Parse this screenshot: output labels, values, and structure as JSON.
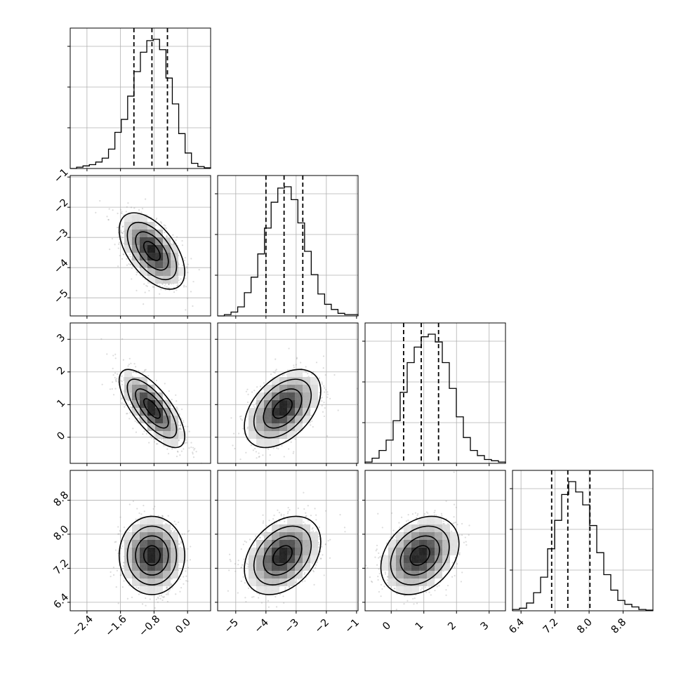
{
  "chart_data": {
    "type": "corner",
    "parameters": [
      "",
      "",
      "",
      ""
    ],
    "grid": true,
    "histograms": [
      {
        "param": 0,
        "xlim": [
          -2.8,
          0.55
        ],
        "x_ticks": [
          "-2.4",
          "-1.6",
          "-0.8",
          "0.0"
        ],
        "quantile_lines": [
          -1.28,
          -0.85,
          -0.48
        ],
        "bins_start": -2.8,
        "bins_end": 0.55,
        "counts": [
          0,
          0.01,
          0.02,
          0.03,
          0.05,
          0.08,
          0.15,
          0.28,
          0.38,
          0.56,
          0.75,
          0.9,
          0.99,
          1.0,
          0.92,
          0.7,
          0.5,
          0.27,
          0.12,
          0.04,
          0.015,
          0.005
        ]
      },
      {
        "param": 1,
        "xlim": [
          -5.6,
          -0.95
        ],
        "x_ticks": [
          "-5",
          "-4",
          "-3",
          "-2",
          "-1"
        ],
        "quantile_lines": [
          -4.0,
          -3.4,
          -2.78
        ],
        "bins_start": -5.6,
        "bins_end": -0.95,
        "counts": [
          0,
          0.01,
          0.03,
          0.07,
          0.18,
          0.3,
          0.48,
          0.68,
          0.88,
          0.99,
          1.0,
          0.9,
          0.72,
          0.5,
          0.32,
          0.17,
          0.09,
          0.05,
          0.02,
          0.01,
          0.01
        ]
      },
      {
        "param": 2,
        "xlim": [
          -0.8,
          3.5
        ],
        "x_ticks": [
          "0",
          "1",
          "2",
          "3"
        ],
        "quantile_lines": [
          0.38,
          0.92,
          1.45
        ],
        "bins_start": -0.8,
        "bins_end": 3.5,
        "counts": [
          0.01,
          0.04,
          0.1,
          0.18,
          0.33,
          0.55,
          0.78,
          0.9,
          0.98,
          1.0,
          0.94,
          0.78,
          0.58,
          0.36,
          0.2,
          0.1,
          0.06,
          0.03,
          0.02,
          0.01
        ]
      },
      {
        "param": 3,
        "xlim": [
          6.2,
          9.5
        ],
        "x_ticks": [
          "6.4",
          "7.2",
          "8.0",
          "8.8"
        ],
        "quantile_lines": [
          7.12,
          7.5,
          8.02
        ],
        "bins_start": 6.2,
        "bins_end": 9.5,
        "counts": [
          0.01,
          0.02,
          0.06,
          0.14,
          0.26,
          0.48,
          0.7,
          0.9,
          1.0,
          0.92,
          0.82,
          0.66,
          0.45,
          0.28,
          0.16,
          0.08,
          0.05,
          0.03,
          0.01,
          0.005
        ]
      }
    ],
    "panels_2d": [
      {
        "row": 1,
        "col": 0,
        "x_param": 0,
        "y_param": 1,
        "mean": [
          -0.85,
          -3.45
        ],
        "sd": [
          0.34,
          0.55
        ],
        "corr": -0.55,
        "y_ticks": [
          "-1",
          "-2",
          "-3",
          "-4",
          "-5"
        ],
        "ylim": [
          -5.6,
          -0.95
        ]
      },
      {
        "row": 2,
        "col": 0,
        "x_param": 0,
        "y_param": 2,
        "mean": [
          -0.85,
          0.88
        ],
        "sd": [
          0.34,
          0.52
        ],
        "corr": -0.72,
        "y_ticks": [
          "3",
          "2",
          "1",
          "0"
        ],
        "ylim": [
          -0.8,
          3.5
        ]
      },
      {
        "row": 2,
        "col": 1,
        "x_param": 1,
        "y_param": 2,
        "mean": [
          -3.45,
          0.88
        ],
        "sd": [
          0.55,
          0.52
        ],
        "corr": 0.45,
        "y_ticks": [],
        "ylim": [
          -0.8,
          3.5
        ]
      },
      {
        "row": 3,
        "col": 0,
        "x_param": 0,
        "y_param": 3,
        "mean": [
          -0.85,
          7.5
        ],
        "sd": [
          0.34,
          0.4
        ],
        "corr": 0.0,
        "y_ticks": [
          "8.8",
          "8.0",
          "7.2",
          "6.4"
        ],
        "ylim": [
          6.2,
          9.5
        ]
      },
      {
        "row": 3,
        "col": 1,
        "x_param": 1,
        "y_param": 3,
        "mean": [
          -3.45,
          7.5
        ],
        "sd": [
          0.55,
          0.4
        ],
        "corr": 0.35,
        "y_ticks": [],
        "ylim": [
          6.2,
          9.5
        ]
      },
      {
        "row": 3,
        "col": 2,
        "x_param": 2,
        "y_param": 3,
        "mean": [
          0.88,
          7.5
        ],
        "sd": [
          0.52,
          0.4
        ],
        "corr": 0.3,
        "y_ticks": [],
        "ylim": [
          6.2,
          9.5
        ]
      }
    ],
    "contour_levels_sigma": [
      0.5,
      1.0,
      1.5,
      2.0
    ]
  }
}
